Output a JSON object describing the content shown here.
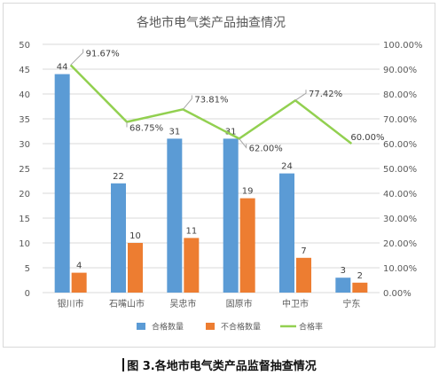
{
  "chart_data": {
    "type": "bar",
    "title": "各地市电气类产品抽查情况",
    "categories": [
      "银川市",
      "石嘴山市",
      "吴忠市",
      "固原市",
      "中卫市",
      "宁东"
    ],
    "series": [
      {
        "name": "合格数量",
        "type": "bar",
        "axis": "left",
        "color": "#5b9bd5",
        "values": [
          44,
          22,
          31,
          31,
          24,
          3
        ]
      },
      {
        "name": "不合格数量",
        "type": "bar",
        "axis": "left",
        "color": "#ed7d31",
        "values": [
          4,
          10,
          11,
          19,
          7,
          2
        ]
      },
      {
        "name": "合格率",
        "type": "line",
        "axis": "right",
        "color": "#92d050",
        "values": [
          91.67,
          68.75,
          73.81,
          62.0,
          77.42,
          60.0
        ],
        "labels": [
          "91.67%",
          "68.75%",
          "73.81%",
          "62.00%",
          "77.42%",
          "60.00%"
        ]
      }
    ],
    "y_left": {
      "min": 0,
      "max": 50,
      "step": 5,
      "ticks": [
        "0",
        "5",
        "10",
        "15",
        "20",
        "25",
        "30",
        "35",
        "40",
        "45",
        "50"
      ]
    },
    "y_right": {
      "min": 0,
      "max": 100,
      "step": 10,
      "ticks": [
        "0.00%",
        "10.00%",
        "20.00%",
        "30.00%",
        "40.00%",
        "50.00%",
        "60.00%",
        "70.00%",
        "80.00%",
        "90.00%",
        "100.00%"
      ]
    },
    "grid": true,
    "legend": "bottom"
  },
  "caption": "图 3.各地市电气类产品监督抽查情况"
}
